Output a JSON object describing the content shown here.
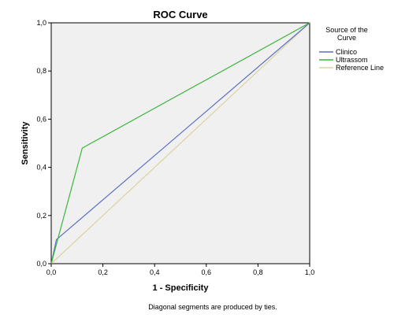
{
  "chart_data": {
    "type": "line",
    "title": "ROC Curve",
    "xlabel": "1 - Specificity",
    "ylabel": "Sensitivity",
    "xlim": [
      0,
      1
    ],
    "ylim": [
      0,
      1
    ],
    "xticks": [
      "0,0",
      "0,2",
      "0,4",
      "0,6",
      "0,8",
      "1,0"
    ],
    "yticks": [
      "0,0",
      "0,2",
      "0,4",
      "0,6",
      "0,8",
      "1,0"
    ],
    "grid": false,
    "background": "#f0f0f0",
    "legend": {
      "title_lines": [
        "Source of the",
        "Curve"
      ],
      "placement": "right"
    },
    "series": [
      {
        "name": "Clinico",
        "color": "#5b6fc4",
        "x": [
          0.0,
          0.02,
          1.0
        ],
        "y": [
          0.0,
          0.1,
          1.0
        ]
      },
      {
        "name": "Ultrassom",
        "color": "#3db53d",
        "x": [
          0.0,
          0.12,
          1.0
        ],
        "y": [
          0.0,
          0.48,
          1.0
        ]
      },
      {
        "name": "Reference Line",
        "color": "#dcd3a0",
        "x": [
          0.0,
          1.0
        ],
        "y": [
          0.0,
          1.0
        ]
      }
    ],
    "footnote": "Diagonal segments are produced by ties."
  }
}
